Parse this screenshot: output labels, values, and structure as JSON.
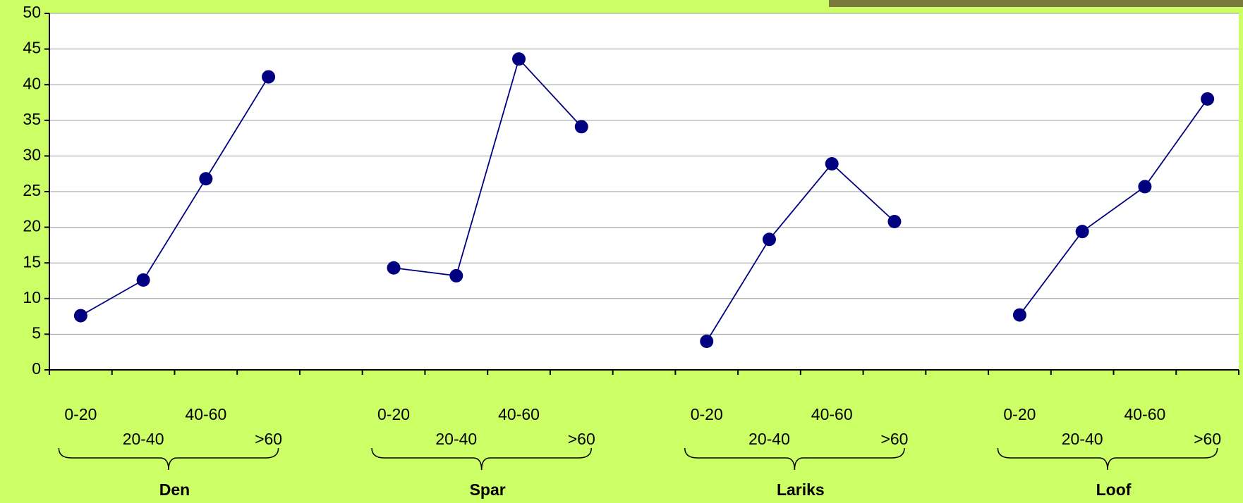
{
  "chart_data": {
    "type": "line",
    "categories": [
      "0-20",
      "20-40",
      "40-60",
      ">60",
      null,
      "0-20",
      "20-40",
      "40-60",
      ">60",
      null,
      "0-20",
      "20-40",
      "40-60",
      ">60",
      null,
      "0-20",
      "20-40",
      "40-60",
      ">60"
    ],
    "groups": [
      "Den",
      "Spar",
      "Lariks",
      "Loof"
    ],
    "series": [
      {
        "color": "#000080",
        "values": [
          7.6,
          12.6,
          26.8,
          41.1,
          null,
          14.3,
          13.2,
          43.6,
          34.1,
          null,
          4.0,
          18.3,
          28.9,
          20.8,
          null,
          7.7,
          19.4,
          25.7,
          38.0
        ]
      }
    ],
    "ylim": [
      0,
      50
    ],
    "yticks": [
      0,
      5,
      10,
      15,
      20,
      25,
      30,
      35,
      40,
      45,
      50
    ],
    "grid": true
  }
}
